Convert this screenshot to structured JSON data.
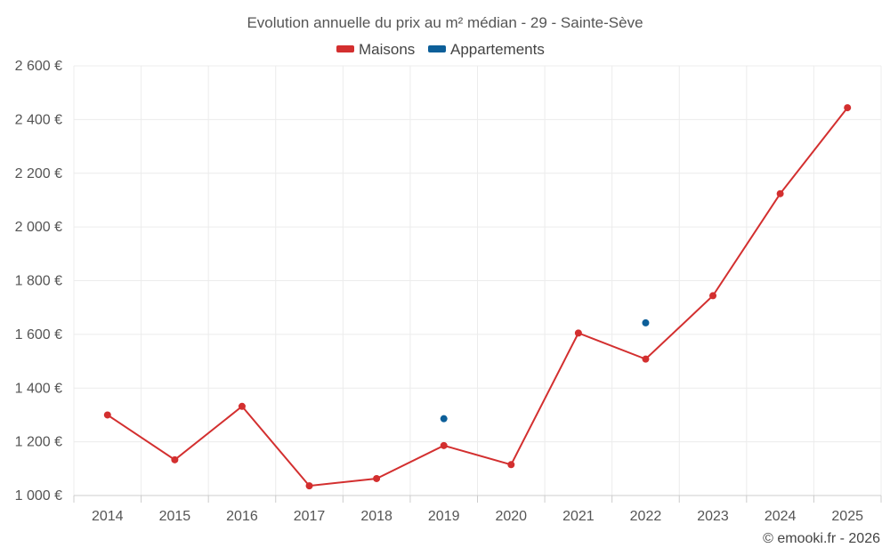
{
  "chart_data": {
    "type": "line",
    "title": "Evolution annuelle du prix au m² médian - 29 - Sainte-Sève",
    "categories": [
      "2014",
      "2015",
      "2016",
      "2017",
      "2018",
      "2019",
      "2020",
      "2021",
      "2022",
      "2023",
      "2024",
      "2025"
    ],
    "ylim": [
      1000,
      2600
    ],
    "yticks": [
      1000,
      1200,
      1400,
      1600,
      1800,
      2000,
      2200,
      2400,
      2600
    ],
    "ytick_labels": [
      "1 000 €",
      "1 200 €",
      "1 400 €",
      "1 600 €",
      "1 800 €",
      "2 000 €",
      "2 200 €",
      "2 400 €",
      "2 600 €"
    ],
    "grid": true,
    "legend_position": "top-center",
    "series": [
      {
        "name": "Maisons",
        "color": "#d32f2f",
        "values": [
          1300,
          1133,
          1332,
          1036,
          1063,
          1186,
          1115,
          1605,
          1508,
          1744,
          2124,
          2444
        ]
      },
      {
        "name": "Appartements",
        "color": "#0d5f99",
        "values": [
          null,
          null,
          null,
          null,
          null,
          1286,
          null,
          null,
          1643,
          null,
          null,
          null
        ]
      }
    ],
    "credit": "© emooki.fr - 2026"
  }
}
